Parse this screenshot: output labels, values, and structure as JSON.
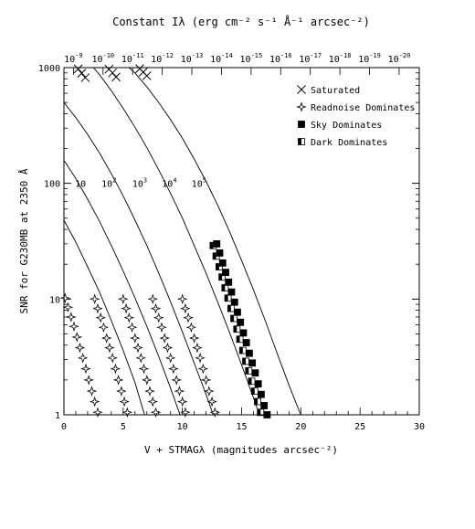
{
  "chart_data": {
    "type": "line",
    "title": "Constant Iλ (erg cm⁻² s⁻¹ Å⁻¹ arcsec⁻²)",
    "xlabel": "V + STMAGλ (magnitudes arcsec⁻²)",
    "ylabel": "SNR for G230MB at 2350 Å",
    "xlim": [
      0,
      30
    ],
    "ylim": [
      1,
      1000
    ],
    "yscale": "log",
    "x_ticks": [
      "0",
      "5",
      "10",
      "15",
      "20",
      "25",
      "30"
    ],
    "y_ticks": [
      "1",
      "10",
      "100",
      "1000"
    ],
    "top_axis": {
      "tick_positions": [
        0.8,
        3.3,
        5.8,
        8.3,
        10.8,
        13.3,
        15.8,
        18.3,
        20.8,
        23.3,
        25.8,
        28.3
      ],
      "base": "10",
      "exponents": [
        "-9",
        "-10",
        "-11",
        "-12",
        "-13",
        "-14",
        "-15",
        "-16",
        "-17",
        "-18",
        "-19",
        "-20"
      ]
    },
    "exposure_labels": [
      {
        "base": "10",
        "exp": "",
        "x": 1.4,
        "y": 100
      },
      {
        "base": "10",
        "exp": "2",
        "x": 3.8,
        "y": 100
      },
      {
        "base": "10",
        "exp": "3",
        "x": 6.4,
        "y": 100
      },
      {
        "base": "10",
        "exp": "4",
        "x": 8.9,
        "y": 100
      },
      {
        "base": "10",
        "exp": "5",
        "x": 11.4,
        "y": 100
      }
    ],
    "legend": {
      "placement": "top-right",
      "entries": [
        {
          "marker": "x-cross",
          "label": "Saturated"
        },
        {
          "marker": "star",
          "label": "Readnoise Dominates"
        },
        {
          "marker": "filled-square",
          "label": "Sky Dominates"
        },
        {
          "marker": "half-square",
          "label": "Dark Dominates"
        }
      ]
    },
    "series": [
      {
        "exposure": "1",
        "points": [
          [
            0.0,
            48
          ],
          [
            1.0,
            31
          ],
          [
            2.0,
            19
          ],
          [
            3.0,
            11.5
          ],
          [
            4.0,
            6.5
          ],
          [
            5.0,
            3.6
          ],
          [
            6.0,
            1.9
          ],
          [
            6.8,
            1.0
          ]
        ]
      },
      {
        "exposure": "10",
        "points": [
          [
            0.0,
            158
          ],
          [
            1.0,
            110
          ],
          [
            2.0,
            73
          ],
          [
            3.0,
            47
          ],
          [
            4.0,
            29
          ],
          [
            5.0,
            17.5
          ],
          [
            6.0,
            10.2
          ],
          [
            7.0,
            5.8
          ],
          [
            8.0,
            3.2
          ],
          [
            9.0,
            1.7
          ],
          [
            9.8,
            1.0
          ]
        ]
      },
      {
        "exposure": "100",
        "points": [
          [
            0.0,
            500
          ],
          [
            1.0,
            370
          ],
          [
            2.0,
            265
          ],
          [
            3.0,
            183
          ],
          [
            4.0,
            121
          ],
          [
            5.0,
            78
          ],
          [
            6.0,
            48
          ],
          [
            7.0,
            29
          ],
          [
            8.0,
            16.8
          ],
          [
            9.0,
            9.5
          ],
          [
            10.0,
            5.2
          ],
          [
            11.0,
            2.8
          ],
          [
            12.0,
            1.5
          ],
          [
            12.6,
            1.0
          ]
        ]
      },
      {
        "exposure": "1000",
        "points": [
          [
            2.5,
            1000
          ],
          [
            3.0,
            870
          ],
          [
            4.0,
            630
          ],
          [
            5.0,
            445
          ],
          [
            6.0,
            305
          ],
          [
            7.0,
            203
          ],
          [
            8.0,
            131
          ],
          [
            9.0,
            82
          ],
          [
            10.0,
            50
          ],
          [
            11.0,
            29
          ],
          [
            12.0,
            16.7
          ],
          [
            13.0,
            9.3
          ],
          [
            14.0,
            5.1
          ],
          [
            15.0,
            2.7
          ],
          [
            16.0,
            1.4
          ],
          [
            16.5,
            1.0
          ]
        ]
      },
      {
        "exposure": "10000",
        "points": [
          [
            5.5,
            1000
          ],
          [
            6.0,
            900
          ],
          [
            7.0,
            680
          ],
          [
            8.0,
            500
          ],
          [
            9.0,
            355
          ],
          [
            10.0,
            245
          ],
          [
            11.0,
            162
          ],
          [
            12.0,
            104
          ],
          [
            13.0,
            64
          ],
          [
            14.0,
            38
          ],
          [
            15.0,
            21.5
          ],
          [
            16.0,
            12
          ],
          [
            17.0,
            6.5
          ],
          [
            18.0,
            3.4
          ],
          [
            19.0,
            1.8
          ],
          [
            20.0,
            1.0
          ]
        ]
      }
    ],
    "markers": {
      "saturated": [
        [
          1.2,
          975
        ],
        [
          1.5,
          895
        ],
        [
          1.8,
          820
        ],
        [
          3.8,
          970
        ],
        [
          4.1,
          900
        ],
        [
          4.4,
          830
        ],
        [
          6.4,
          980
        ],
        [
          6.7,
          915
        ],
        [
          7.0,
          850
        ]
      ],
      "readnoise": [
        [
          0.1,
          10.2
        ],
        [
          0.35,
          8.5
        ],
        [
          0.6,
          7.0
        ],
        [
          0.85,
          5.8
        ],
        [
          1.1,
          4.7
        ],
        [
          1.35,
          3.8
        ],
        [
          1.6,
          3.1
        ],
        [
          1.85,
          2.5
        ],
        [
          2.1,
          2.0
        ],
        [
          2.35,
          1.6
        ],
        [
          2.6,
          1.3
        ],
        [
          2.85,
          1.05
        ],
        [
          2.6,
          10.0
        ],
        [
          2.85,
          8.3
        ],
        [
          3.1,
          6.9
        ],
        [
          3.35,
          5.7
        ],
        [
          3.6,
          4.6
        ],
        [
          3.85,
          3.8
        ],
        [
          4.1,
          3.1
        ],
        [
          4.35,
          2.5
        ],
        [
          4.6,
          2.0
        ],
        [
          4.85,
          1.6
        ],
        [
          5.1,
          1.3
        ],
        [
          5.35,
          1.05
        ],
        [
          5.0,
          10.0
        ],
        [
          5.25,
          8.3
        ],
        [
          5.5,
          6.9
        ],
        [
          5.75,
          5.7
        ],
        [
          6.0,
          4.6
        ],
        [
          6.25,
          3.8
        ],
        [
          6.5,
          3.1
        ],
        [
          6.75,
          2.5
        ],
        [
          7.0,
          2.0
        ],
        [
          7.25,
          1.6
        ],
        [
          7.5,
          1.3
        ],
        [
          7.75,
          1.05
        ],
        [
          7.5,
          10.0
        ],
        [
          7.75,
          8.3
        ],
        [
          8.0,
          6.9
        ],
        [
          8.25,
          5.7
        ],
        [
          8.5,
          4.6
        ],
        [
          8.75,
          3.8
        ],
        [
          9.0,
          3.1
        ],
        [
          9.25,
          2.5
        ],
        [
          9.5,
          2.0
        ],
        [
          9.75,
          1.6
        ],
        [
          10.0,
          1.3
        ],
        [
          10.25,
          1.05
        ],
        [
          10.0,
          10.0
        ],
        [
          10.25,
          8.3
        ],
        [
          10.5,
          6.9
        ],
        [
          10.75,
          5.7
        ],
        [
          11.0,
          4.6
        ],
        [
          11.25,
          3.8
        ],
        [
          11.5,
          3.1
        ],
        [
          11.75,
          2.5
        ],
        [
          12.0,
          2.0
        ],
        [
          12.25,
          1.6
        ],
        [
          12.5,
          1.3
        ],
        [
          12.75,
          1.05
        ]
      ],
      "sky": [
        [
          12.9,
          30
        ],
        [
          13.15,
          25
        ],
        [
          13.4,
          20.5
        ],
        [
          13.65,
          17
        ],
        [
          13.9,
          14
        ],
        [
          14.15,
          11.5
        ],
        [
          14.4,
          9.4
        ],
        [
          14.65,
          7.7
        ],
        [
          14.9,
          6.3
        ],
        [
          15.15,
          5.1
        ],
        [
          15.4,
          4.2
        ],
        [
          15.65,
          3.4
        ],
        [
          15.9,
          2.8
        ],
        [
          16.15,
          2.3
        ],
        [
          16.4,
          1.85
        ],
        [
          16.65,
          1.5
        ],
        [
          16.9,
          1.2
        ],
        [
          17.15,
          1.0
        ]
      ],
      "dark": [
        [
          12.6,
          29
        ],
        [
          12.85,
          23.5
        ],
        [
          13.1,
          19
        ],
        [
          13.35,
          15.5
        ],
        [
          13.6,
          12.5
        ],
        [
          13.85,
          10.2
        ],
        [
          14.1,
          8.3
        ],
        [
          14.35,
          6.8
        ],
        [
          14.6,
          5.5
        ],
        [
          14.85,
          4.5
        ],
        [
          15.1,
          3.6
        ],
        [
          15.35,
          2.9
        ],
        [
          15.6,
          2.4
        ],
        [
          15.85,
          1.95
        ],
        [
          16.1,
          1.6
        ],
        [
          16.35,
          1.3
        ],
        [
          16.6,
          1.05
        ]
      ]
    }
  }
}
